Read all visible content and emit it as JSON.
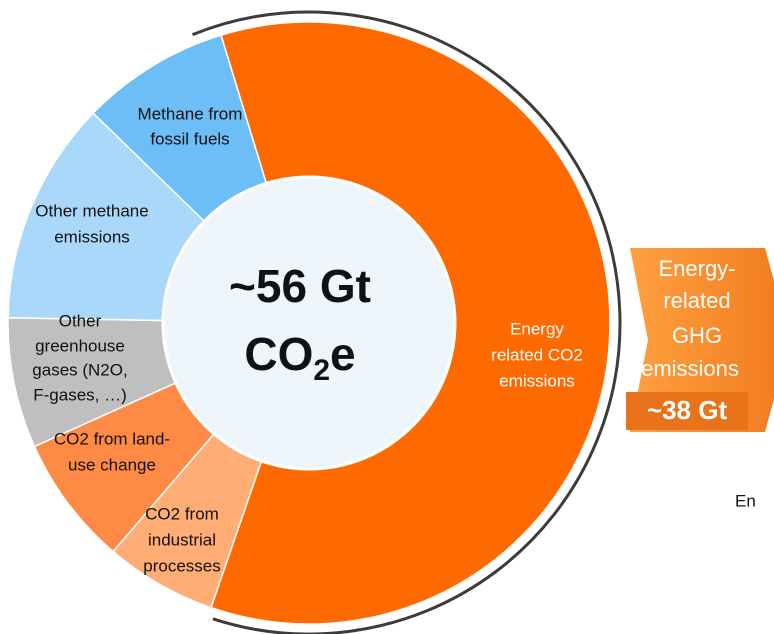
{
  "chart_data": {
    "type": "donut",
    "center_label": {
      "main": "~56 Gt",
      "formula": [
        "CO",
        "2",
        "e"
      ]
    },
    "categories": [
      [
        "Energy",
        "related CO2",
        "emissions"
      ],
      [
        "CO2 from",
        "industrial",
        "processes"
      ],
      [
        "CO2 from land-",
        "use change"
      ],
      [
        "Other",
        "greenhouse",
        "gases (N2O,",
        "F-gases, …)"
      ],
      [
        "Other methane",
        "emissions"
      ],
      [
        "Methane from",
        "fossil fuels"
      ]
    ],
    "values": [
      60,
      6,
      7,
      7,
      12,
      8
    ],
    "colors": [
      "#ff6a00",
      "#ffad75",
      "#ff8a45",
      "#bfbfbf",
      "#a9d8fa",
      "#6dbdf6"
    ]
  },
  "callout": {
    "lines": [
      "Energy-",
      "related",
      "GHG",
      "emissions"
    ],
    "total": "~38 Gt"
  },
  "cut_text": "En"
}
